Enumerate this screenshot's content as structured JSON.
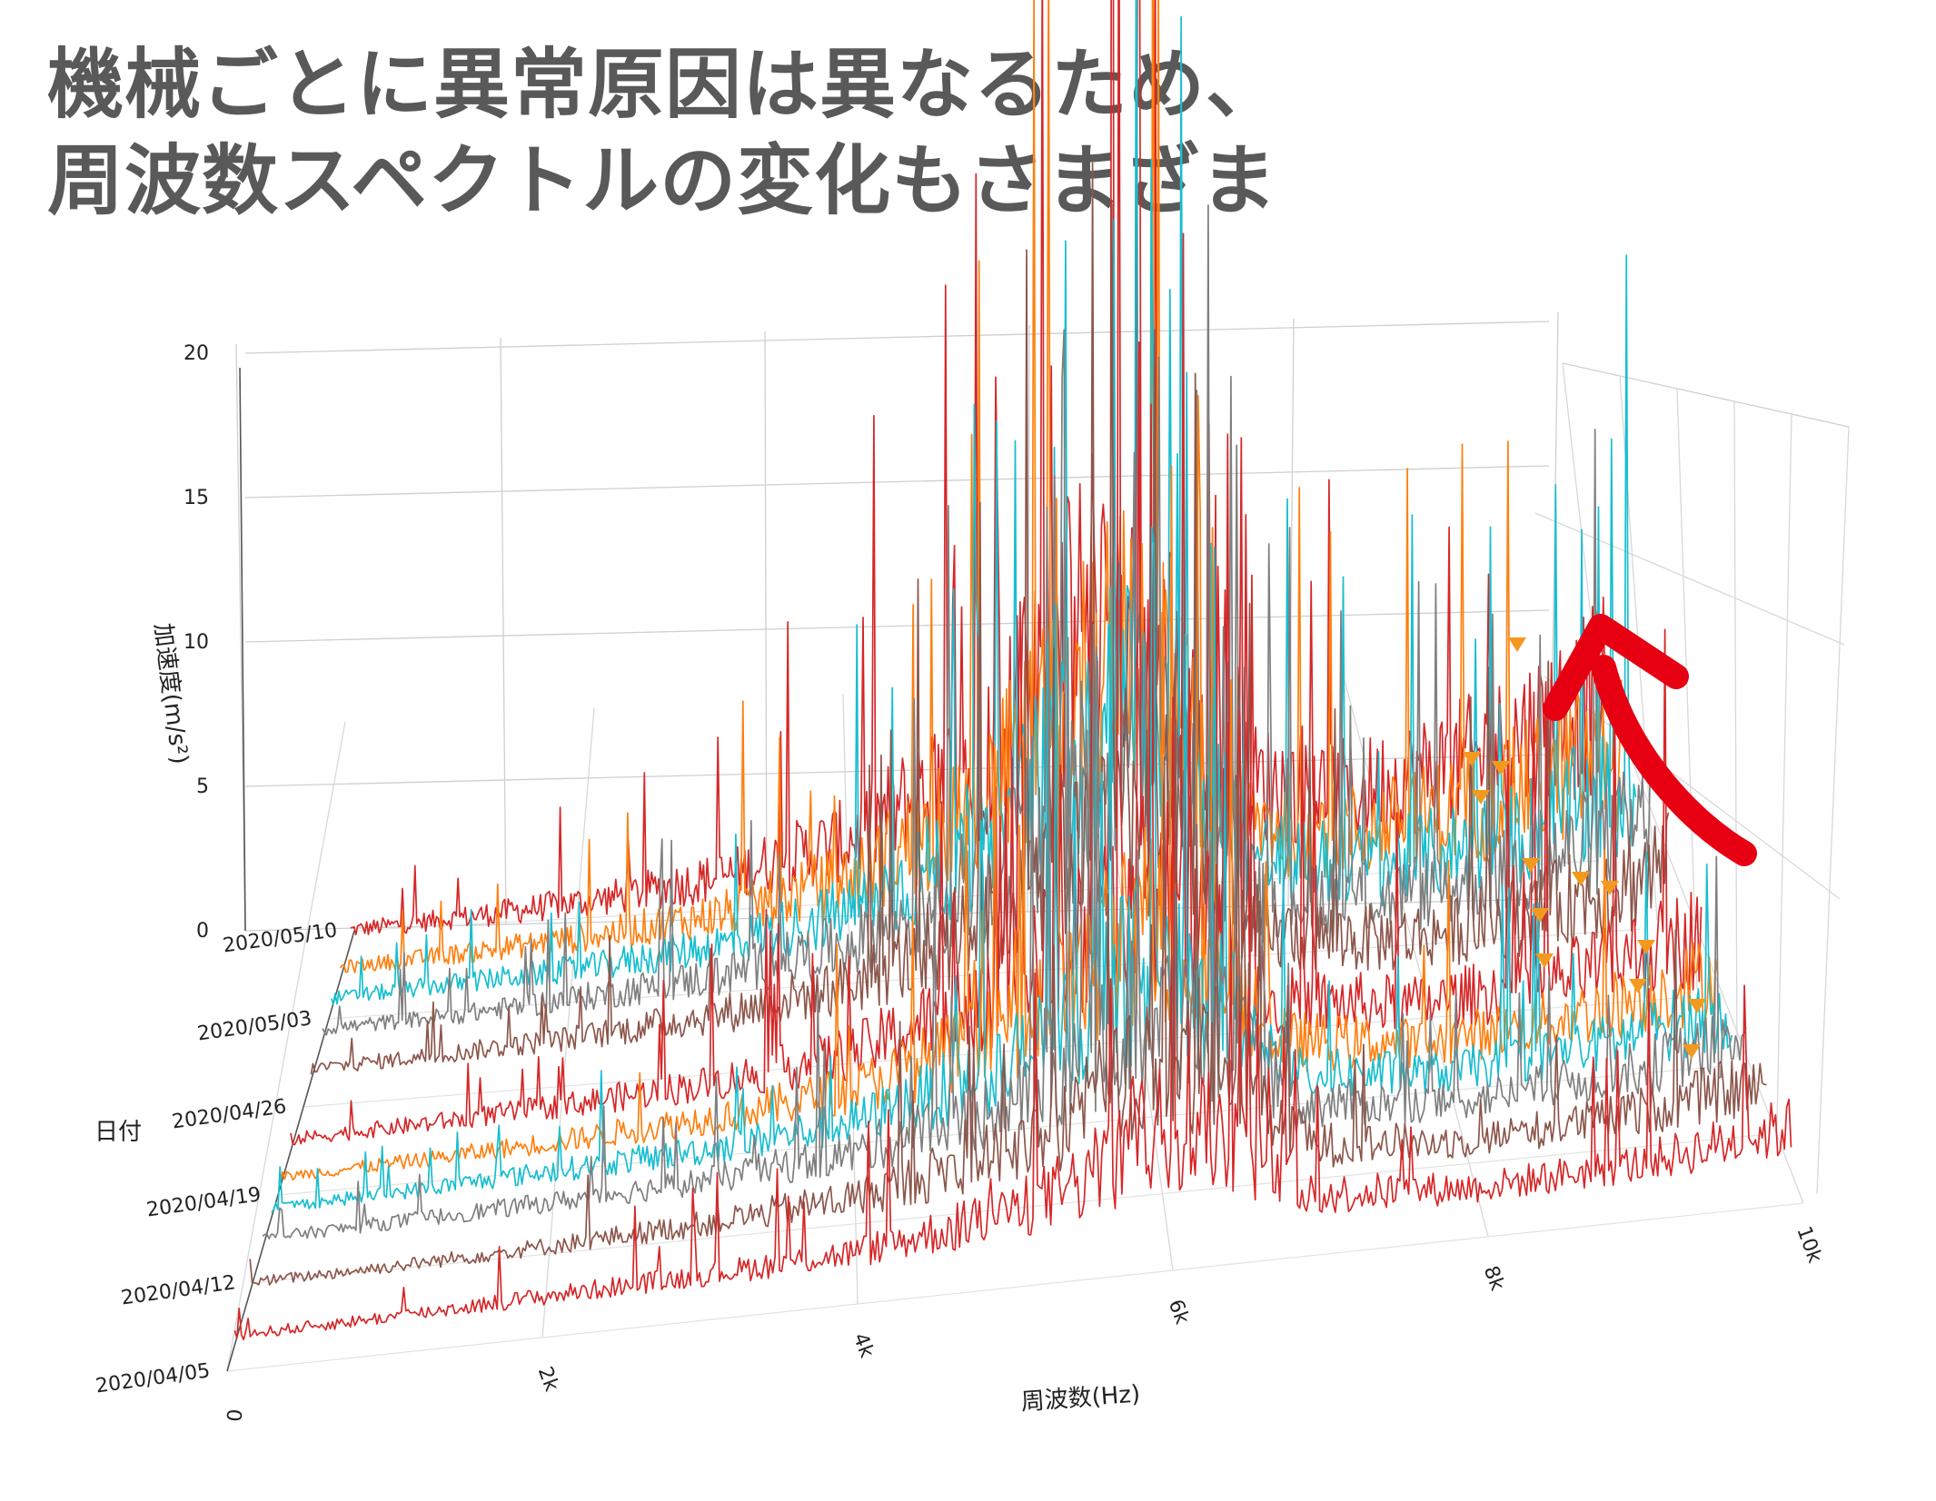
{
  "headline": {
    "line1": "機械ごとに異常原因は異なるため、",
    "line2": "周波数スペクトルの変化もさまざま"
  },
  "chart_data": {
    "type": "line",
    "projection": "3d-waterfall",
    "title": "",
    "xlabel": "周波数(Hz)",
    "ylabel": "加速度(m/s²)",
    "zlabel": "日付",
    "x_ticks": [
      "0",
      "2k",
      "4k",
      "6k",
      "8k",
      "10k"
    ],
    "x_tick_values": [
      0,
      2000,
      4000,
      6000,
      8000,
      10000
    ],
    "xlim": [
      0,
      10000
    ],
    "y_ticks": [
      "0",
      "5",
      "10",
      "15",
      "20"
    ],
    "y_tick_values": [
      0,
      5,
      10,
      15,
      20
    ],
    "ylim": [
      0,
      20
    ],
    "z_ticks": [
      "2020/04/05",
      "2020/04/12",
      "2020/04/19",
      "2020/04/26",
      "2020/05/03",
      "2020/05/10"
    ],
    "grid": true,
    "legend": "none",
    "palette": [
      "#d62728",
      "#8c564b",
      "#7f7f7f",
      "#17becf",
      "#ff7f0e"
    ],
    "series": [
      {
        "date_index": 0.3,
        "color": "#d62728",
        "freqs": [
          0,
          1000,
          2000,
          3000,
          4000,
          5000,
          5500,
          6000,
          6500,
          7000,
          8000,
          9000,
          10000
        ],
        "values": [
          0.4,
          0.5,
          0.7,
          0.9,
          1.2,
          2.2,
          3.4,
          5.5,
          4.0,
          1.6,
          1.2,
          1.5,
          2.4
        ]
      },
      {
        "date_index": 0.9,
        "color": "#8c564b",
        "freqs": [
          0,
          1000,
          2000,
          3000,
          4000,
          5000,
          5500,
          6000,
          6500,
          7000,
          8000,
          9000,
          10000
        ],
        "values": [
          0.4,
          0.5,
          0.7,
          1.0,
          1.5,
          2.8,
          4.2,
          6.2,
          4.8,
          1.8,
          1.3,
          1.7,
          2.6
        ]
      },
      {
        "date_index": 1.4,
        "color": "#7f7f7f",
        "freqs": [
          0,
          1000,
          2000,
          3000,
          4000,
          5000,
          5500,
          6000,
          6500,
          7000,
          8000,
          9000,
          10000
        ],
        "values": [
          0.4,
          0.6,
          0.8,
          1.1,
          1.7,
          3.2,
          4.8,
          7.0,
          5.2,
          2.0,
          1.4,
          1.9,
          2.9
        ]
      },
      {
        "date_index": 1.75,
        "color": "#17becf",
        "freqs": [
          0,
          1000,
          2000,
          3000,
          4000,
          5000,
          5500,
          6000,
          6500,
          7000,
          8000,
          9000,
          10000
        ],
        "values": [
          0.4,
          0.6,
          0.9,
          1.2,
          1.8,
          3.5,
          5.2,
          7.6,
          5.6,
          2.1,
          1.6,
          2.1,
          3.2
        ]
      },
      {
        "date_index": 2.1,
        "color": "#ff7f0e",
        "freqs": [
          0,
          1000,
          2000,
          3000,
          4000,
          5000,
          5500,
          6000,
          6500,
          7000,
          8000,
          9000,
          10000
        ],
        "values": [
          0.4,
          0.6,
          0.9,
          1.3,
          2.0,
          3.8,
          5.6,
          8.2,
          6.0,
          2.4,
          1.8,
          2.4,
          3.6
        ]
      },
      {
        "date_index": 2.5,
        "color": "#d62728",
        "freqs": [
          0,
          1000,
          2000,
          3000,
          4000,
          5000,
          5500,
          6000,
          6500,
          7000,
          8000,
          9000,
          10000
        ],
        "values": [
          0.5,
          0.7,
          1.0,
          1.4,
          2.2,
          4.2,
          6.2,
          9.0,
          6.8,
          2.8,
          2.2,
          2.8,
          4.2
        ]
      },
      {
        "date_index": 3.3,
        "color": "#8c564b",
        "freqs": [
          0,
          1000,
          2000,
          3000,
          4000,
          5000,
          5500,
          6000,
          6500,
          7000,
          8000,
          9000,
          10000
        ],
        "values": [
          0.5,
          0.7,
          1.0,
          1.5,
          2.4,
          4.6,
          6.8,
          9.8,
          7.4,
          3.2,
          2.5,
          3.2,
          4.8
        ]
      },
      {
        "date_index": 3.75,
        "color": "#7f7f7f",
        "freqs": [
          0,
          1000,
          2000,
          3000,
          4000,
          5000,
          5500,
          6000,
          6500,
          7000,
          8000,
          9000,
          10000
        ],
        "values": [
          0.5,
          0.7,
          1.1,
          1.6,
          2.6,
          5.0,
          7.4,
          10.8,
          8.2,
          3.6,
          2.9,
          3.6,
          5.3
        ]
      },
      {
        "date_index": 4.1,
        "color": "#17becf",
        "freqs": [
          0,
          1000,
          2000,
          3000,
          4000,
          5000,
          5500,
          6000,
          6500,
          7000,
          8000,
          9000,
          10000
        ],
        "values": [
          0.5,
          0.8,
          1.1,
          1.7,
          2.8,
          5.4,
          8.0,
          11.6,
          8.8,
          4.0,
          3.2,
          4.0,
          5.8
        ]
      },
      {
        "date_index": 4.45,
        "color": "#ff7f0e",
        "freqs": [
          0,
          1000,
          2000,
          3000,
          4000,
          5000,
          5500,
          6000,
          6500,
          7000,
          8000,
          9000,
          10000
        ],
        "values": [
          0.5,
          0.8,
          1.2,
          1.8,
          3.0,
          5.8,
          8.6,
          12.5,
          9.4,
          4.4,
          3.6,
          4.6,
          6.6
        ]
      },
      {
        "date_index": 4.85,
        "color": "#d62728",
        "freqs": [
          0,
          1000,
          2000,
          3000,
          4000,
          5000,
          5500,
          6000,
          6500,
          7000,
          8000,
          9000,
          10000
        ],
        "values": [
          0.6,
          0.9,
          1.3,
          2.0,
          3.3,
          6.3,
          9.4,
          13.6,
          10.2,
          4.9,
          4.0,
          5.2,
          7.6
        ]
      }
    ]
  },
  "annotation": {
    "arrow_color": "#e60012",
    "marker_color": "#f39a1e"
  }
}
